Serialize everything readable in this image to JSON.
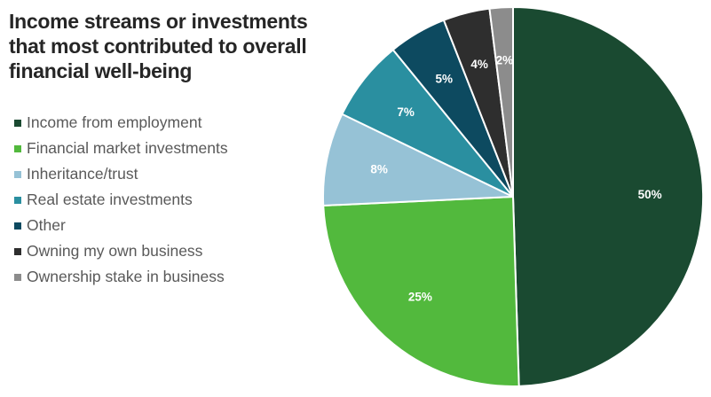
{
  "chart_data": {
    "type": "pie",
    "title_lines": [
      "Income streams or investments",
      "that most contributed to overall",
      "financial well-being"
    ],
    "legend_position": "left",
    "start_angle_deg": 0,
    "direction": "clockwise",
    "slices": [
      {
        "label": "Income from employment",
        "value": 50,
        "value_label": "50%",
        "color": "#1a4a31"
      },
      {
        "label": "Financial market investments",
        "value": 25,
        "value_label": "25%",
        "color": "#52b93d"
      },
      {
        "label": "Inheritance/trust",
        "value": 8,
        "value_label": "8%",
        "color": "#96c2d6"
      },
      {
        "label": "Real estate investments",
        "value": 7,
        "value_label": "7%",
        "color": "#2a8fa0"
      },
      {
        "label": "Other",
        "value": 5,
        "value_label": "5%",
        "color": "#0d4a60"
      },
      {
        "label": "Owning my own business",
        "value": 4,
        "value_label": "4%",
        "color": "#2e2e2e"
      },
      {
        "label": "Ownership stake in business",
        "value": 2,
        "value_label": "2%",
        "color": "#8c8c8c"
      }
    ]
  }
}
